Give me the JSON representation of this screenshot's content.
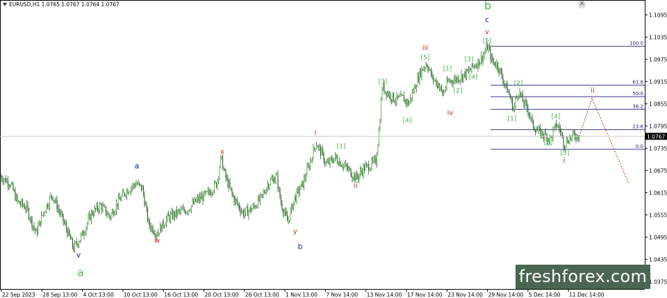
{
  "header": {
    "symbol_line": "EURUSD,H1  1.0765 1.0767 1.0764 1.0767"
  },
  "price_tag": "1.0767",
  "brand": "freshforex.com",
  "colors": {
    "background": "#ffffff",
    "axis": "#000000",
    "candle": "#2e6b2e",
    "candle_up": "#78c36b",
    "fib": "#1a1a7a",
    "green_label": "#4caf50",
    "red_label": "#d02a1a",
    "blue_label": "#1020c0",
    "bid_line": "#c8c8c8",
    "logo_bg": "#4a6651"
  },
  "chart_data": {
    "type": "candlestick",
    "symbol": "EURUSD",
    "timeframe": "H1",
    "ohlc_last": {
      "open": 1.0765,
      "high": 1.0767,
      "low": 1.0764,
      "close": 1.0767
    },
    "y_axis": {
      "ticks": [
        "1.1095",
        "1.1035",
        "1.0975",
        "1.0915",
        "1.0855",
        "1.0795",
        "1.0735",
        "1.0675",
        "1.0615",
        "1.0555",
        "1.0495",
        "1.0435",
        "1.0375"
      ],
      "range": [
        1.0355,
        1.1135
      ]
    },
    "x_axis": {
      "ticks": [
        "22 Sep 2023",
        "28 Sep 13:00",
        "4 Oct 13:00",
        "10 Oct 13:00",
        "16 Oct 13:00",
        "20 Oct 13:00",
        "26 Oct 13:00",
        "1 Nov 13:00",
        "7 Nov 14:00",
        "13 Nov 14:00",
        "17 Nov 14:00",
        "23 Nov 14:00",
        "29 Nov 14:00",
        "5 Dec 14:00",
        "11 Dec 14:00"
      ]
    },
    "price_path": [
      [
        0,
        1.066
      ],
      [
        15,
        1.064
      ],
      [
        25,
        1.059
      ],
      [
        38,
        1.0575
      ],
      [
        52,
        1.0505
      ],
      [
        62,
        1.056
      ],
      [
        75,
        1.061
      ],
      [
        84,
        1.057
      ],
      [
        95,
        1.052
      ],
      [
        106,
        1.0465
      ],
      [
        118,
        1.05
      ],
      [
        132,
        1.056
      ],
      [
        145,
        1.058
      ],
      [
        158,
        1.055
      ],
      [
        170,
        1.059
      ],
      [
        182,
        1.062
      ],
      [
        196,
        1.064
      ],
      [
        205,
        1.0625
      ],
      [
        214,
        1.053
      ],
      [
        226,
        1.0505
      ],
      [
        240,
        1.0545
      ],
      [
        255,
        1.056
      ],
      [
        270,
        1.057
      ],
      [
        284,
        1.0595
      ],
      [
        298,
        1.061
      ],
      [
        312,
        1.064
      ],
      [
        318,
        1.071
      ],
      [
        324,
        1.066
      ],
      [
        336,
        1.06
      ],
      [
        350,
        1.056
      ],
      [
        362,
        1.057
      ],
      [
        376,
        1.06
      ],
      [
        386,
        1.064
      ],
      [
        398,
        1.066
      ],
      [
        404,
        1.059
      ],
      [
        414,
        1.0535
      ],
      [
        424,
        1.06
      ],
      [
        436,
        1.064
      ],
      [
        445,
        1.069
      ],
      [
        455,
        1.075
      ],
      [
        463,
        1.072
      ],
      [
        470,
        1.069
      ],
      [
        482,
        1.071
      ],
      [
        494,
        1.069
      ],
      [
        505,
        1.067
      ],
      [
        513,
        1.0655
      ],
      [
        523,
        1.068
      ],
      [
        534,
        1.069
      ],
      [
        541,
        1.07
      ],
      [
        546,
        1.079
      ],
      [
        550,
        1.09
      ],
      [
        560,
        1.088
      ],
      [
        570,
        1.0865
      ],
      [
        580,
        1.087
      ],
      [
        588,
        1.0855
      ],
      [
        597,
        1.09
      ],
      [
        605,
        1.094
      ],
      [
        614,
        1.0965
      ],
      [
        622,
        1.0925
      ],
      [
        632,
        1.0905
      ],
      [
        637,
        1.088
      ],
      [
        645,
        1.0915
      ],
      [
        654,
        1.092
      ],
      [
        665,
        1.093
      ],
      [
        674,
        1.094
      ],
      [
        683,
        1.096
      ],
      [
        690,
        1.097
      ],
      [
        697,
        1.099
      ],
      [
        702,
        1.101
      ],
      [
        708,
        1.097
      ],
      [
        716,
        1.096
      ],
      [
        724,
        1.092
      ],
      [
        733,
        1.088
      ],
      [
        739,
        1.084
      ],
      [
        746,
        1.089
      ],
      [
        753,
        1.086
      ],
      [
        760,
        1.084
      ],
      [
        766,
        1.08
      ],
      [
        774,
        1.078
      ],
      [
        784,
        1.077
      ],
      [
        792,
        1.076
      ],
      [
        801,
        1.08
      ],
      [
        807,
        1.078
      ],
      [
        812,
        1.0745
      ],
      [
        818,
        1.076
      ],
      [
        826,
        1.077
      ],
      [
        834,
        1.0767
      ]
    ],
    "projection": [
      [
        834,
        1.0767
      ],
      [
        852,
        1.087
      ],
      [
        905,
        1.064
      ]
    ],
    "fibonacci": [
      {
        "level": "100.0",
        "price": 1.101
      },
      {
        "level": "61.8",
        "price": 1.0905
      },
      {
        "level": "50.0",
        "price": 1.0874
      },
      {
        "level": "38.2",
        "price": 1.084
      },
      {
        "level": "23.6",
        "price": 1.0785
      },
      {
        "level": "0.0",
        "price": 1.0732
      }
    ],
    "wave_labels": [
      {
        "text": "b",
        "color": "green",
        "size": 16,
        "x": 702,
        "price": 1.111
      },
      {
        "text": "c",
        "color": "blue",
        "size": 11,
        "x": 701,
        "price": 1.1075
      },
      {
        "text": "v",
        "color": "red",
        "size": 10,
        "x": 701,
        "price": 1.1043
      },
      {
        "text": "[5]",
        "color": "green",
        "size": 9,
        "x": 701,
        "price": 1.102
      },
      {
        "text": "iii",
        "color": "red",
        "size": 10,
        "x": 612,
        "price": 1.1
      },
      {
        "text": "[5]",
        "color": "green",
        "size": 9,
        "x": 612,
        "price": 1.0975
      },
      {
        "text": "[3]",
        "color": "green",
        "size": 9,
        "x": 675,
        "price": 1.097
      },
      {
        "text": "[1]",
        "color": "green",
        "size": 9,
        "x": 644,
        "price": 1.0945
      },
      {
        "text": "[4]",
        "color": "green",
        "size": 9,
        "x": 681,
        "price": 1.0922
      },
      {
        "text": "[3]",
        "color": "green",
        "size": 9,
        "x": 551,
        "price": 1.091
      },
      {
        "text": "[2]",
        "color": "green",
        "size": 9,
        "x": 659,
        "price": 1.0885
      },
      {
        "text": "[2]",
        "color": "green",
        "size": 9,
        "x": 746,
        "price": 1.0905
      },
      {
        "text": "ii",
        "color": "red",
        "size": 10,
        "x": 853,
        "price": 1.0885
      },
      {
        "text": "iv",
        "color": "red",
        "size": 10,
        "x": 648,
        "price": 1.0825
      },
      {
        "text": "[4]",
        "color": "green",
        "size": 9,
        "x": 586,
        "price": 1.0805
      },
      {
        "text": "[1]",
        "color": "green",
        "size": 9,
        "x": 737,
        "price": 1.081
      },
      {
        "text": "[4]",
        "color": "green",
        "size": 9,
        "x": 800,
        "price": 1.0815
      },
      {
        "text": "i",
        "color": "red",
        "size": 10,
        "x": 454,
        "price": 1.077
      },
      {
        "text": "[3]",
        "color": "green",
        "size": 9,
        "x": 789,
        "price": 1.0745
      },
      {
        "text": "[1]",
        "color": "green",
        "size": 9,
        "x": 491,
        "price": 1.0735
      },
      {
        "text": "[5]",
        "color": "green",
        "size": 9,
        "x": 813,
        "price": 1.0717
      },
      {
        "text": "i",
        "color": "red",
        "size": 10,
        "x": 812,
        "price": 1.0695
      },
      {
        "text": "x",
        "color": "red",
        "size": 10,
        "x": 320,
        "price": 1.072
      },
      {
        "text": "[2]",
        "color": "green",
        "size": 9,
        "x": 512,
        "price": 1.0645
      },
      {
        "text": "ii",
        "color": "red",
        "size": 10,
        "x": 512,
        "price": 1.0628
      },
      {
        "text": "a",
        "color": "blue",
        "size": 11,
        "x": 197,
        "price": 1.068
      },
      {
        "text": "w",
        "color": "red",
        "size": 10,
        "x": 226,
        "price": 1.048
      },
      {
        "text": "y",
        "color": "red",
        "size": 10,
        "x": 425,
        "price": 1.0505
      },
      {
        "text": "b",
        "color": "blue",
        "size": 11,
        "x": 432,
        "price": 1.0463
      },
      {
        "text": "v",
        "color": "blue",
        "size": 11,
        "x": 113,
        "price": 1.044
      },
      {
        "text": "a",
        "color": "green",
        "size": 15,
        "x": 116,
        "price": 1.039
      }
    ]
  }
}
